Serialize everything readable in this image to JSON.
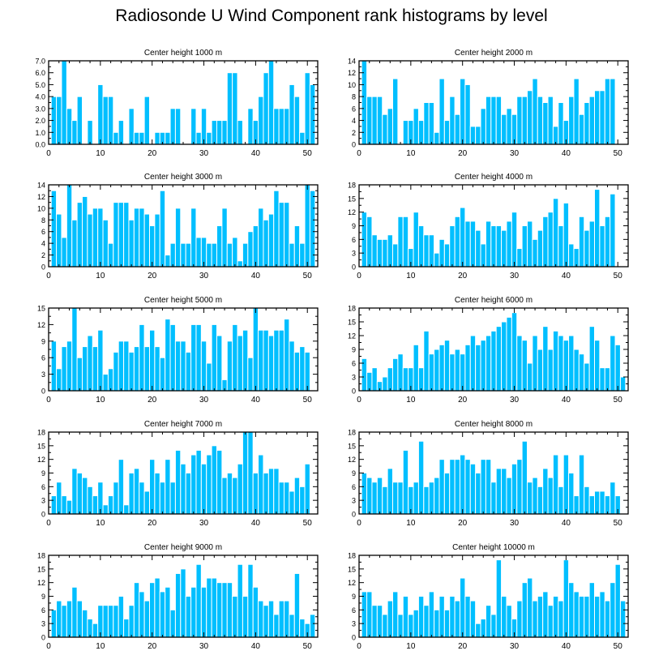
{
  "title": "Radiosonde U Wind Component rank histograms by level",
  "colors": {
    "bar": "#00bfff",
    "bar_edge": "#ffffff",
    "axis": "#000000"
  },
  "chart_data": [
    {
      "type": "bar",
      "title": "Center height 1000 m",
      "x_start": 1,
      "xlim": [
        0,
        52
      ],
      "ylim": [
        0,
        7
      ],
      "yticks": [
        0,
        1,
        2,
        3,
        4,
        5,
        6,
        7
      ],
      "ytick_labels": [
        "0.0",
        "1.0",
        "2.0",
        "3.0",
        "4.0",
        "5.0",
        "6.0",
        "7.0"
      ],
      "xticks": [
        0,
        10,
        20,
        30,
        40,
        50
      ],
      "xtick_labels": [
        "0",
        "10",
        "20",
        "30",
        "40",
        "50"
      ],
      "values": [
        4,
        4,
        7,
        3,
        2,
        4,
        0,
        2,
        0,
        5,
        4,
        4,
        1,
        2,
        0,
        3,
        1,
        1,
        4,
        0,
        1,
        1,
        1,
        3,
        3,
        0,
        0,
        3,
        1,
        3,
        1,
        2,
        2,
        2,
        6,
        6,
        2,
        0,
        3,
        2,
        4,
        6,
        7,
        3,
        3,
        3,
        5,
        4,
        1,
        6,
        5
      ]
    },
    {
      "type": "bar",
      "title": "Center height 2000 m",
      "x_start": 1,
      "xlim": [
        0,
        52
      ],
      "ylim": [
        0,
        14
      ],
      "yticks": [
        0,
        2,
        4,
        6,
        8,
        10,
        12,
        14
      ],
      "ytick_labels": [
        "0",
        "2",
        "4",
        "6",
        "8",
        "10",
        "12",
        "14"
      ],
      "xticks": [
        0,
        10,
        20,
        30,
        40,
        50
      ],
      "xtick_labels": [
        "0",
        "10",
        "20",
        "30",
        "40",
        "50"
      ],
      "values": [
        14,
        8,
        8,
        8,
        5,
        6,
        11,
        0,
        4,
        4,
        6,
        4,
        7,
        7,
        2,
        11,
        4,
        8,
        5,
        11,
        10,
        3,
        3,
        6,
        8,
        8,
        8,
        5,
        6,
        5,
        8,
        8,
        9,
        11,
        8,
        7,
        8,
        3,
        7,
        4,
        8,
        11,
        5,
        7,
        8,
        9,
        9,
        11,
        11,
        0,
        0
      ]
    },
    {
      "type": "bar",
      "title": "Center height 3000 m",
      "x_start": 1,
      "xlim": [
        0,
        52
      ],
      "ylim": [
        0,
        14
      ],
      "yticks": [
        0,
        2,
        4,
        6,
        8,
        10,
        12,
        14
      ],
      "ytick_labels": [
        "0",
        "2",
        "4",
        "6",
        "8",
        "10",
        "12",
        "14"
      ],
      "xticks": [
        0,
        10,
        20,
        30,
        40,
        50
      ],
      "xtick_labels": [
        "0",
        "10",
        "20",
        "30",
        "40",
        "50"
      ],
      "values": [
        13,
        9,
        5,
        14,
        8,
        11,
        12,
        9,
        10,
        10,
        8,
        4,
        11,
        11,
        11,
        8,
        10,
        10,
        9,
        7,
        9,
        13,
        2,
        4,
        10,
        4,
        4,
        10,
        5,
        5,
        4,
        4,
        7,
        10,
        4,
        5,
        1,
        4,
        6,
        7,
        10,
        8,
        9,
        13,
        11,
        11,
        4,
        7,
        4,
        14,
        13
      ]
    },
    {
      "type": "bar",
      "title": "Center height 4000 m",
      "x_start": 1,
      "xlim": [
        0,
        52
      ],
      "ylim": [
        0,
        18
      ],
      "yticks": [
        0,
        3,
        6,
        9,
        12,
        15,
        18
      ],
      "ytick_labels": [
        "0",
        "3",
        "6",
        "9",
        "12",
        "15",
        "18"
      ],
      "xticks": [
        0,
        10,
        20,
        30,
        40,
        50
      ],
      "xtick_labels": [
        "0",
        "10",
        "20",
        "30",
        "40",
        "50"
      ],
      "values": [
        12,
        11,
        7,
        6,
        6,
        7,
        5,
        11,
        11,
        4,
        12,
        9,
        7,
        7,
        3,
        6,
        5,
        9,
        11,
        13,
        10,
        10,
        8,
        5,
        10,
        9,
        9,
        8,
        10,
        12,
        4,
        9,
        10,
        6,
        8,
        11,
        12,
        15,
        9,
        14,
        5,
        4,
        11,
        8,
        10,
        17,
        9,
        11,
        16,
        0,
        0
      ]
    },
    {
      "type": "bar",
      "title": "Center height 5000 m",
      "x_start": 1,
      "xlim": [
        0,
        52
      ],
      "ylim": [
        0,
        15
      ],
      "yticks": [
        0,
        3,
        6,
        9,
        12,
        15
      ],
      "ytick_labels": [
        "0",
        "3",
        "6",
        "9",
        "12",
        "15"
      ],
      "xticks": [
        0,
        10,
        20,
        30,
        40,
        50
      ],
      "xtick_labels": [
        "0",
        "10",
        "20",
        "30",
        "40",
        "50"
      ],
      "values": [
        9,
        4,
        8,
        9,
        15,
        6,
        8,
        10,
        8,
        11,
        3,
        4,
        7,
        9,
        9,
        7,
        8,
        12,
        8,
        11,
        8,
        6,
        13,
        12,
        9,
        9,
        7,
        12,
        12,
        9,
        5,
        12,
        10,
        2,
        9,
        12,
        10,
        11,
        6,
        15,
        11,
        11,
        10,
        11,
        11,
        13,
        9,
        7,
        8,
        7,
        0
      ]
    },
    {
      "type": "bar",
      "title": "Center height 6000 m",
      "x_start": 1,
      "xlim": [
        0,
        52
      ],
      "ylim": [
        0,
        18
      ],
      "yticks": [
        0,
        3,
        6,
        9,
        12,
        15,
        18
      ],
      "ytick_labels": [
        "0",
        "3",
        "6",
        "9",
        "12",
        "15",
        "18"
      ],
      "xticks": [
        0,
        10,
        20,
        30,
        40,
        50
      ],
      "xtick_labels": [
        "0",
        "10",
        "20",
        "30",
        "40",
        "50"
      ],
      "values": [
        7,
        4,
        5,
        2,
        3,
        5,
        7,
        8,
        5,
        5,
        10,
        5,
        13,
        8,
        9,
        10,
        11,
        8,
        9,
        8,
        10,
        12,
        10,
        11,
        12,
        13,
        14,
        15,
        16,
        17,
        12,
        11,
        6,
        12,
        9,
        14,
        9,
        13,
        12,
        11,
        12,
        9,
        8,
        6,
        14,
        11,
        5,
        5,
        12,
        10,
        3
      ]
    },
    {
      "type": "bar",
      "title": "Center height 7000 m",
      "x_start": 1,
      "xlim": [
        0,
        52
      ],
      "ylim": [
        0,
        18
      ],
      "yticks": [
        0,
        3,
        6,
        9,
        12,
        15,
        18
      ],
      "ytick_labels": [
        "0",
        "3",
        "6",
        "9",
        "12",
        "15",
        "18"
      ],
      "xticks": [
        0,
        10,
        20,
        30,
        40,
        50
      ],
      "xtick_labels": [
        "0",
        "10",
        "20",
        "30",
        "40",
        "50"
      ],
      "values": [
        4,
        7,
        4,
        3,
        10,
        9,
        8,
        6,
        4,
        7,
        2,
        4,
        7,
        12,
        2,
        9,
        10,
        7,
        5,
        12,
        9,
        7,
        12,
        7,
        14,
        11,
        9,
        13,
        14,
        11,
        13,
        15,
        14,
        8,
        9,
        8,
        11,
        18,
        18,
        9,
        13,
        9,
        10,
        10,
        7,
        7,
        5,
        8,
        6,
        11,
        0
      ]
    },
    {
      "type": "bar",
      "title": "Center height 8000 m",
      "x_start": 1,
      "xlim": [
        0,
        52
      ],
      "ylim": [
        0,
        18
      ],
      "yticks": [
        0,
        3,
        6,
        9,
        12,
        15,
        18
      ],
      "ytick_labels": [
        "0",
        "3",
        "6",
        "9",
        "12",
        "15",
        "18"
      ],
      "xticks": [
        0,
        10,
        20,
        30,
        40,
        50
      ],
      "xtick_labels": [
        "0",
        "10",
        "20",
        "30",
        "40",
        "50"
      ],
      "values": [
        9,
        8,
        7,
        8,
        6,
        10,
        7,
        7,
        14,
        6,
        7,
        16,
        6,
        7,
        8,
        12,
        9,
        12,
        12,
        13,
        12,
        11,
        9,
        12,
        12,
        7,
        10,
        10,
        8,
        11,
        12,
        16,
        7,
        8,
        6,
        10,
        8,
        13,
        6,
        13,
        9,
        4,
        13,
        6,
        4,
        5,
        5,
        4,
        7,
        4,
        0
      ]
    },
    {
      "type": "bar",
      "title": "Center height 9000 m",
      "x_start": 1,
      "xlim": [
        0,
        52
      ],
      "ylim": [
        0,
        18
      ],
      "yticks": [
        0,
        3,
        6,
        9,
        12,
        15,
        18
      ],
      "ytick_labels": [
        "0",
        "3",
        "6",
        "9",
        "12",
        "15",
        "18"
      ],
      "xticks": [
        0,
        10,
        20,
        30,
        40,
        50
      ],
      "xtick_labels": [
        "0",
        "10",
        "20",
        "30",
        "40",
        "50"
      ],
      "values": [
        6,
        8,
        7,
        8,
        11,
        8,
        6,
        4,
        3,
        7,
        7,
        7,
        7,
        9,
        4,
        7,
        12,
        10,
        8,
        12,
        13,
        10,
        11,
        6,
        14,
        15,
        9,
        11,
        16,
        11,
        13,
        13,
        12,
        12,
        12,
        9,
        16,
        9,
        16,
        11,
        8,
        7,
        8,
        5,
        8,
        8,
        5,
        14,
        4,
        3,
        5
      ]
    },
    {
      "type": "bar",
      "title": "Center height 10000 m",
      "x_start": 1,
      "xlim": [
        0,
        52
      ],
      "ylim": [
        0,
        18
      ],
      "yticks": [
        0,
        3,
        6,
        9,
        12,
        15,
        18
      ],
      "ytick_labels": [
        "0",
        "3",
        "6",
        "9",
        "12",
        "15",
        "18"
      ],
      "xticks": [
        0,
        10,
        20,
        30,
        40,
        50
      ],
      "xtick_labels": [
        "0",
        "10",
        "20",
        "30",
        "40",
        "50"
      ],
      "values": [
        10,
        10,
        7,
        7,
        5,
        8,
        10,
        5,
        9,
        5,
        6,
        9,
        7,
        10,
        6,
        9,
        6,
        9,
        8,
        13,
        9,
        8,
        3,
        4,
        7,
        5,
        17,
        9,
        7,
        4,
        8,
        12,
        13,
        8,
        9,
        10,
        7,
        9,
        8,
        17,
        12,
        10,
        9,
        9,
        12,
        9,
        10,
        8,
        12,
        16,
        8
      ]
    }
  ]
}
